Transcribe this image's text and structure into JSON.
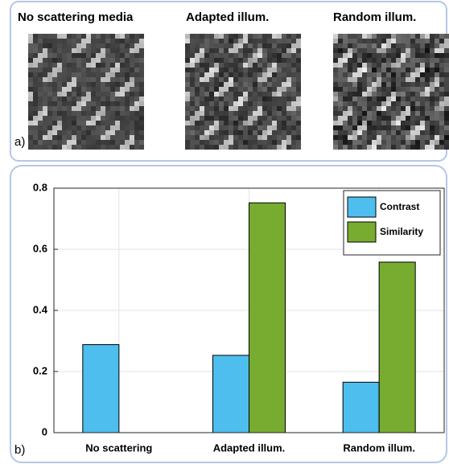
{
  "panel_a": {
    "titles": [
      "No scattering media",
      "Adapted illum.",
      "Random illum."
    ],
    "label": "a)"
  },
  "panel_b_label": "b)",
  "chart_data": {
    "type": "bar",
    "categories": [
      "No scattering",
      "Adapted illum.",
      "Random illum."
    ],
    "series": [
      {
        "name": "Contrast",
        "color": "#4dbeee",
        "values": [
          0.288,
          0.253,
          0.165
        ]
      },
      {
        "name": "Similarity",
        "color": "#77ac30",
        "values": [
          0,
          0.752,
          0.558
        ]
      }
    ],
    "ylim": [
      0,
      0.8
    ],
    "yticks": [
      0,
      0.2,
      0.4,
      0.6,
      0.8
    ],
    "grid": true,
    "legend": "upper right"
  }
}
